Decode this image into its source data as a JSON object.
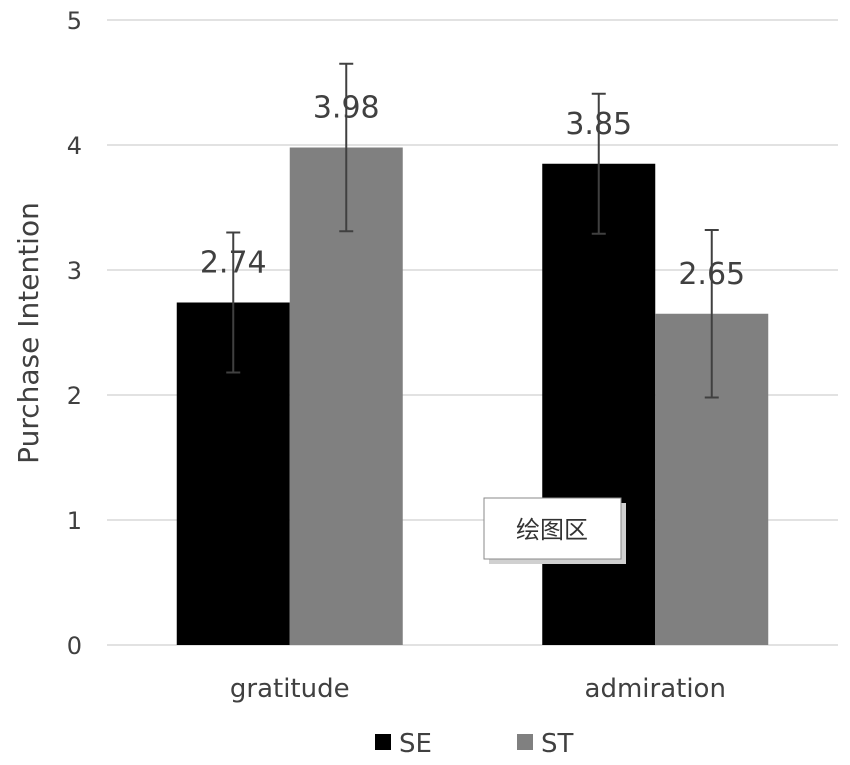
{
  "chart_data": {
    "type": "bar",
    "title": "",
    "xlabel": "",
    "ylabel": "Purchase Intention",
    "ylim": [
      0,
      5
    ],
    "yticks": [
      "0",
      "1",
      "2",
      "3",
      "4",
      "5"
    ],
    "grid": true,
    "legend": "bottom",
    "categories": [
      "gratitude",
      "admiration"
    ],
    "series": [
      {
        "name": "SE",
        "color": "#000000",
        "values": [
          2.74,
          3.85
        ],
        "error_low": [
          2.18,
          3.29
        ],
        "error_high": [
          3.3,
          4.41
        ],
        "labels": [
          "2.74",
          "3.85"
        ]
      },
      {
        "name": "ST",
        "color": "#808080",
        "values": [
          3.98,
          2.65
        ],
        "error_low": [
          3.31,
          1.98
        ],
        "error_high": [
          4.65,
          3.32
        ],
        "labels": [
          "3.98",
          "2.65"
        ]
      }
    ]
  },
  "tooltip": {
    "text": "绘图区"
  },
  "colors": {
    "grid": "#d9d9d9",
    "text": "#404040",
    "errorbar": "#404040"
  }
}
